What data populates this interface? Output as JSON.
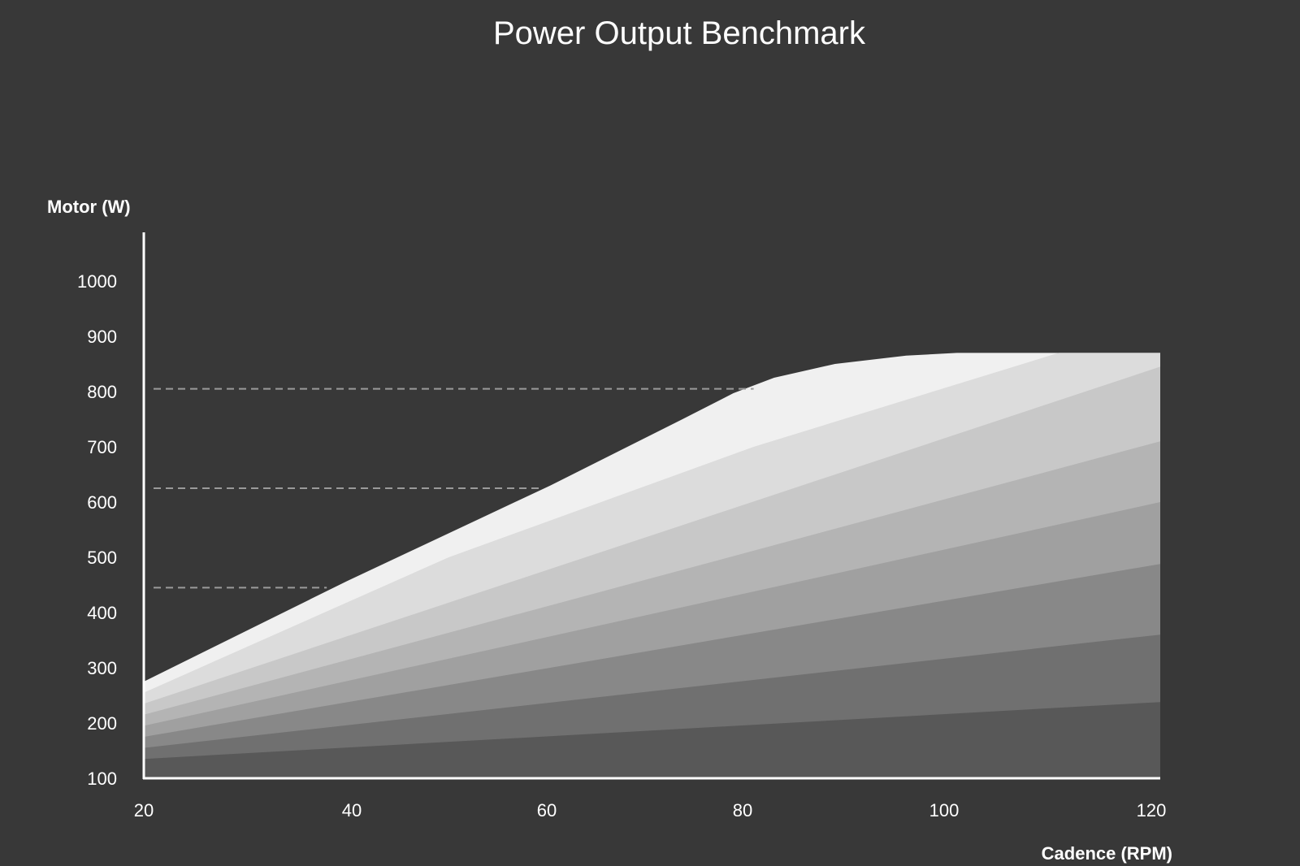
{
  "chart_data": {
    "type": "area",
    "title": "Power Output Benchmark",
    "xlabel": "Cadence (RPM)",
    "ylabel": "Motor (W)",
    "xlim": [
      20,
      120
    ],
    "ylim": [
      100,
      1000
    ],
    "x_ticks": [
      20,
      40,
      60,
      80,
      100,
      120
    ],
    "y_ticks": [
      100,
      200,
      300,
      400,
      500,
      600,
      700,
      800,
      900,
      1000
    ],
    "grid": false,
    "reference_lines": [
      {
        "y": 805,
        "x_end": 80
      },
      {
        "y": 625,
        "x_end": 59
      },
      {
        "y": 445,
        "x_end": 38
      }
    ],
    "series": [
      {
        "color": "#f0f0f0",
        "points": [
          [
            20,
            275
          ],
          [
            40,
            457
          ],
          [
            60,
            630
          ],
          [
            73,
            750
          ],
          [
            78,
            797
          ],
          [
            82,
            825
          ],
          [
            88,
            850
          ],
          [
            95,
            865
          ],
          [
            100,
            870
          ],
          [
            120,
            870
          ]
        ]
      },
      {
        "color": "#dcdcdc",
        "points": [
          [
            20,
            255
          ],
          [
            50,
            500
          ],
          [
            80,
            700
          ],
          [
            110,
            870
          ],
          [
            120,
            870
          ]
        ]
      },
      {
        "color": "#c8c8c8",
        "points": [
          [
            20,
            235
          ],
          [
            120,
            845
          ]
        ]
      },
      {
        "color": "#b4b4b4",
        "points": [
          [
            20,
            215
          ],
          [
            120,
            710
          ]
        ]
      },
      {
        "color": "#a0a0a0",
        "points": [
          [
            20,
            195
          ],
          [
            120,
            600
          ]
        ]
      },
      {
        "color": "#888888",
        "points": [
          [
            20,
            175
          ],
          [
            120,
            488
          ]
        ]
      },
      {
        "color": "#707070",
        "points": [
          [
            20,
            155
          ],
          [
            120,
            360
          ]
        ]
      },
      {
        "color": "#585858",
        "points": [
          [
            20,
            135
          ],
          [
            120,
            238
          ]
        ]
      }
    ]
  }
}
